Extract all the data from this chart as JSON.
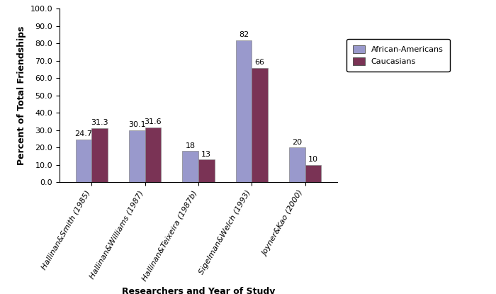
{
  "categories": [
    "Hallinan&Smith (1985)",
    "Hallinan&Williams (1987)",
    "Hallinan&Teixeira (1987b)",
    "Sigelman&Welch (1993)",
    "Joyner&Kao (2000)"
  ],
  "african_americans": [
    24.7,
    30.1,
    18,
    82,
    20
  ],
  "caucasians": [
    31.3,
    31.6,
    13,
    66,
    10
  ],
  "african_americans_color": "#9999cc",
  "caucasians_color": "#7a3355",
  "bar_width": 0.3,
  "ylim": [
    0,
    100
  ],
  "yticks": [
    0.0,
    10.0,
    20.0,
    30.0,
    40.0,
    50.0,
    60.0,
    70.0,
    80.0,
    90.0,
    100.0
  ],
  "ylabel": "Percent of Total Friendships",
  "xlabel": "Researchers and Year of Study",
  "legend_labels": [
    "African-Americans",
    "Caucasians"
  ],
  "axis_label_fontsize": 9,
  "tick_label_fontsize": 8,
  "annotation_fontsize": 8,
  "legend_fontsize": 8
}
